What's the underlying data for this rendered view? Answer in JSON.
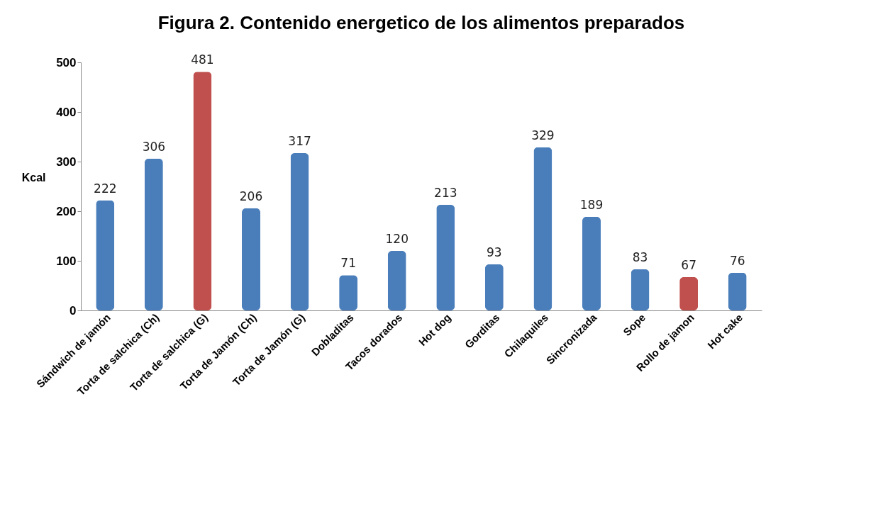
{
  "chart_data": {
    "type": "bar",
    "title": "Figura 2. Contenido energetico de los alimentos preparados",
    "ylabel": "Kcal",
    "categories": [
      "Sándwich de jamón",
      "Torta de salchica (Ch)",
      "Torta de salchica (G)",
      "Torta de Jamón (Ch)",
      "Torta de Jamón (G)",
      "Dobladitas",
      "Tacos dorados",
      "Hot dog",
      "Gorditas",
      "Chilaquiles",
      "Sincronizada",
      "Sope",
      "Rollo de jamon",
      "Hot cake"
    ],
    "values": [
      222,
      306,
      481,
      206,
      317,
      71,
      120,
      213,
      93,
      329,
      189,
      83,
      67,
      76
    ],
    "colors": [
      "#4a7ebb",
      "#4a7ebb",
      "#c0504d",
      "#4a7ebb",
      "#4a7ebb",
      "#4a7ebb",
      "#4a7ebb",
      "#4a7ebb",
      "#4a7ebb",
      "#4a7ebb",
      "#4a7ebb",
      "#4a7ebb",
      "#c0504d",
      "#4a7ebb"
    ],
    "ylim": [
      0,
      500
    ],
    "yticks": [
      0,
      100,
      200,
      300,
      400,
      500
    ],
    "grid": false,
    "data_labels": true
  }
}
